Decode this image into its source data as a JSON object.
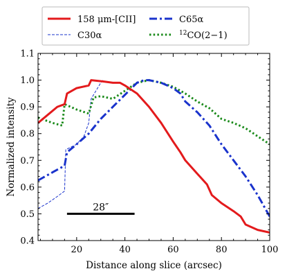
{
  "chart_data": {
    "type": "line",
    "title": "",
    "xlabel": "Distance along slice (arcsec)",
    "ylabel": "Normalized intensity",
    "xlim": [
      4,
      100
    ],
    "ylim": [
      0.4,
      1.1
    ],
    "xticks": [
      20,
      40,
      60,
      80,
      100
    ],
    "xtick_labels": [
      "20",
      "40",
      "60",
      "80",
      "100"
    ],
    "yticks": [
      0.4,
      0.5,
      0.6,
      0.7,
      0.8,
      0.9,
      1.0,
      1.1
    ],
    "ytick_labels": [
      "0.4",
      "0.5",
      "0.6",
      "0.7",
      "0.8",
      "0.9",
      "1.0",
      "1.1"
    ],
    "grid": false,
    "legend_position": "top-outside",
    "series": [
      {
        "name": "158 μm-[CII]",
        "color": "#e31a1c",
        "style": "solid",
        "x": [
          4,
          8,
          12,
          15,
          16,
          20,
          25,
          26,
          31,
          35,
          38,
          40,
          45,
          50,
          55,
          60,
          63,
          65,
          70,
          74,
          76,
          80,
          85,
          88,
          90,
          95,
          100
        ],
        "y": [
          0.84,
          0.87,
          0.9,
          0.91,
          0.95,
          0.97,
          0.98,
          1.0,
          0.995,
          0.99,
          0.99,
          0.98,
          0.95,
          0.9,
          0.84,
          0.77,
          0.73,
          0.7,
          0.65,
          0.61,
          0.57,
          0.54,
          0.51,
          0.49,
          0.46,
          0.44,
          0.43
        ]
      },
      {
        "name": "C30α",
        "color": "#1a33cc",
        "style": "thin-dashed",
        "x": [
          4,
          8,
          12,
          15,
          15.5,
          20,
          23,
          25,
          26,
          30,
          31
        ],
        "y": [
          0.52,
          0.54,
          0.565,
          0.585,
          0.74,
          0.76,
          0.79,
          0.84,
          0.93,
          0.99,
          1.0
        ]
      },
      {
        "name": "C65α",
        "color": "#1a33cc",
        "style": "dash-dot",
        "x": [
          4,
          10,
          15,
          16,
          20,
          25,
          30,
          35,
          40,
          45,
          48,
          50,
          55,
          60,
          63,
          65,
          70,
          75,
          80,
          85,
          90,
          95,
          100
        ],
        "y": [
          0.625,
          0.655,
          0.68,
          0.73,
          0.76,
          0.8,
          0.855,
          0.9,
          0.945,
          0.99,
          1.0,
          1.0,
          0.99,
          0.97,
          0.95,
          0.92,
          0.88,
          0.83,
          0.76,
          0.7,
          0.64,
          0.57,
          0.49
        ]
      },
      {
        "name": "12CO(2−1)",
        "color": "#1a8a1a",
        "style": "dotted",
        "x": [
          4,
          10,
          14,
          15,
          20,
          25,
          27,
          30,
          35,
          40,
          45,
          50,
          55,
          60,
          65,
          70,
          75,
          80,
          85,
          90,
          95,
          100
        ],
        "y": [
          0.86,
          0.84,
          0.83,
          0.91,
          0.89,
          0.875,
          0.935,
          0.94,
          0.93,
          0.96,
          0.99,
          1.0,
          0.99,
          0.975,
          0.95,
          0.92,
          0.895,
          0.855,
          0.84,
          0.82,
          0.79,
          0.76
        ]
      }
    ],
    "scalebar": {
      "label": "28″",
      "x_start": 16,
      "x_end": 44,
      "y": 0.5
    }
  },
  "legend": {
    "entries": [
      {
        "key": "cii",
        "label": "158 μm-[CII]"
      },
      {
        "key": "c65",
        "label": "C65α"
      },
      {
        "key": "c30",
        "label": "C30α"
      },
      {
        "key": "co",
        "label": "12CO(2−1)",
        "superscript": "12",
        "rest": "CO(2−1)"
      }
    ]
  }
}
